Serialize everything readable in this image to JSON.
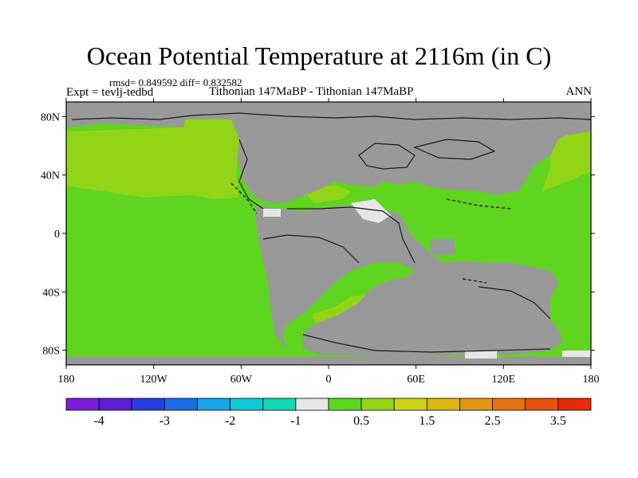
{
  "title": "Ocean Potential Temperature at 2116m (in C)",
  "stats": "rmsd= 0.849592  diff= 0.832582",
  "experiment": "Expt = tevlj-tedbd",
  "period": "Tithonian 147MaBP - Tithonian 147MaBP",
  "season": "ANN",
  "lat_ticks": [
    "80N",
    "40N",
    "0",
    "40S",
    "80S"
  ],
  "lon_ticks": [
    "180",
    "120W",
    "60W",
    "0",
    "60E",
    "120E",
    "180"
  ],
  "colorbar": {
    "labels": [
      "-4",
      "-3",
      "-2",
      "-1",
      "0.5",
      "1.5",
      "2.5",
      "3.5"
    ],
    "colors": [
      "#7a1fd6",
      "#5a1fd6",
      "#2a3de0",
      "#1a6ee8",
      "#16a6e8",
      "#10c9d8",
      "#10d8b0",
      "#e6e6e6",
      "#58d820",
      "#96d418",
      "#cad416",
      "#ddb812",
      "#e09610",
      "#e4750e",
      "#e8520c",
      "#e82a08"
    ]
  },
  "colors": {
    "land": "#999999",
    "ocean_main": "#5fd520",
    "ocean_warm": "#92d416",
    "ocean_neutral": "#e6e6e6"
  }
}
